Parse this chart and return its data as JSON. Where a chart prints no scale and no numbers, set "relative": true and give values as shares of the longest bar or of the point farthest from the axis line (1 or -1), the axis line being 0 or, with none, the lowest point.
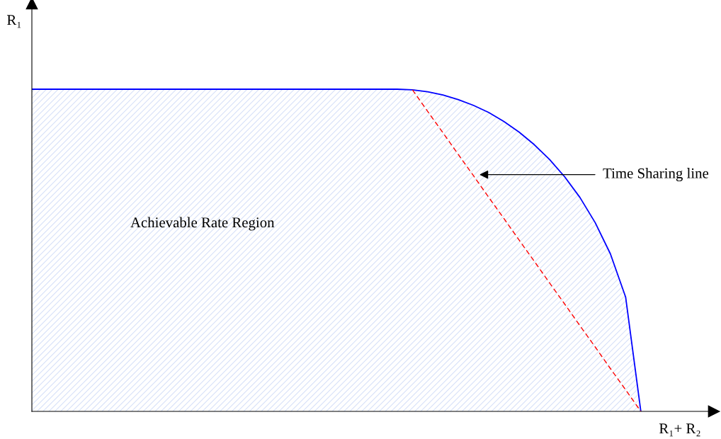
{
  "chart_data": {
    "type": "area",
    "relative": true,
    "xlabel": "R₁+ R₂",
    "ylabel": "R₁",
    "categories": [
      null,
      null,
      null,
      null,
      null,
      null,
      null,
      null,
      null,
      null,
      null,
      null,
      null,
      null,
      null,
      null,
      null,
      null,
      null,
      null,
      null,
      null,
      null,
      null,
      null,
      null,
      null,
      null,
      null,
      null,
      null,
      null,
      null,
      null,
      null,
      null,
      null,
      null,
      null,
      null,
      null,
      null,
      null,
      null,
      null
    ],
    "series": [
      {
        "color": "#0000ff",
        "values": [
          1,
          1,
          1,
          1,
          1,
          1,
          1,
          1,
          1,
          1,
          1,
          1,
          1,
          1,
          1,
          1,
          1,
          1,
          1,
          1,
          1,
          1,
          1,
          1,
          1,
          0.998,
          0.992,
          0.982,
          0.968,
          0.95,
          0.928,
          0.9,
          0.867,
          0.828,
          0.782,
          0.728,
          0.664,
          0.586,
          0.489,
          0.355,
          0,
          null,
          null,
          null,
          null
        ]
      },
      {
        "type": "line",
        "color": "#ff0000",
        "line_style": "dashed",
        "values": [
          null,
          null,
          null,
          null,
          null,
          null,
          null,
          null,
          null,
          null,
          null,
          null,
          null,
          null,
          null,
          null,
          null,
          null,
          null,
          null,
          null,
          null,
          null,
          null,
          null,
          0.998,
          0.931,
          0.865,
          0.798,
          0.732,
          0.665,
          0.599,
          0.532,
          0.466,
          0.399,
          0.333,
          0.266,
          0.2,
          0.133,
          0.067,
          0,
          null,
          null,
          null,
          null
        ]
      }
    ],
    "annotations": [
      "Achievable Rate Region",
      "Time Sharing line"
    ],
    "grid": false,
    "legend": false
  }
}
